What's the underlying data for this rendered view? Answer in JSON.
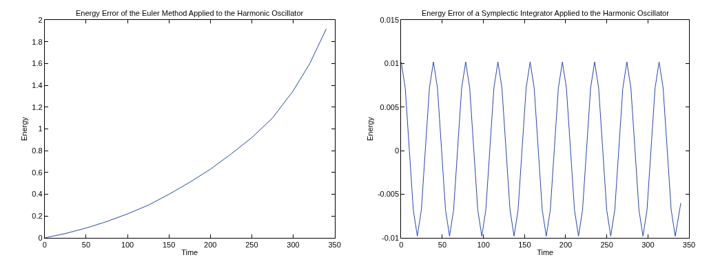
{
  "chart_data": [
    {
      "type": "line",
      "title": "Energy Error of the Euler Method Applied to the Harmonic Oscillator",
      "xlabel": "Time",
      "ylabel": "Energy",
      "x": [
        0,
        25,
        50,
        75,
        100,
        125,
        150,
        175,
        200,
        225,
        250,
        275,
        300,
        320,
        340
      ],
      "series": [
        {
          "color": "#2846a8",
          "values": [
            0,
            0.04,
            0.09,
            0.15,
            0.22,
            0.3,
            0.4,
            0.51,
            0.63,
            0.77,
            0.92,
            1.1,
            1.35,
            1.6,
            1.92
          ]
        }
      ],
      "xlim": [
        0,
        350
      ],
      "ylim": [
        0,
        2
      ],
      "xticks": [
        0,
        50,
        100,
        150,
        200,
        250,
        300,
        350
      ],
      "yticks": [
        0,
        0.2,
        0.4,
        0.6,
        0.8,
        1,
        1.2,
        1.4,
        1.6,
        1.8,
        2
      ]
    },
    {
      "type": "line",
      "title": "Energy Error of a Symplectic Integrator Applied to the Harmonic Oscillator",
      "xlabel": "Time",
      "ylabel": "Energy",
      "x": [
        0,
        4.9,
        9.8,
        14.7,
        19.6,
        24.5,
        29.4,
        34.3,
        39.2,
        44.1,
        49,
        53.9,
        58.8,
        63.7,
        68.6,
        73.5,
        78.4,
        83.3,
        88.2,
        93.1,
        98,
        102.9,
        107.8,
        112.7,
        117.6,
        122.5,
        127.4,
        132.3,
        137.2,
        142.1,
        147,
        151.9,
        156.8,
        161.7,
        166.6,
        171.5,
        176.4,
        181.3,
        186.2,
        191.1,
        196,
        200.9,
        205.8,
        210.7,
        215.6,
        220.5,
        225.4,
        230.3,
        235.2,
        240.1,
        245,
        249.9,
        254.8,
        259.7,
        264.6,
        269.5,
        274.4,
        279.3,
        284.2,
        289.1,
        294,
        298.9,
        303.8,
        308.7,
        313.6,
        318.5,
        323.4,
        328.3,
        333.2,
        340
      ],
      "series": [
        {
          "color": "#2846a8",
          "values": [
            0.0102,
            0.0072,
            0.0002,
            -0.0068,
            -0.0098,
            -0.0068,
            0.0002,
            0.0072,
            0.0102,
            0.0072,
            0.0002,
            -0.0068,
            -0.0098,
            -0.0068,
            0.0002,
            0.0072,
            0.0102,
            0.0072,
            0.0002,
            -0.0068,
            -0.0098,
            -0.0068,
            0.0002,
            0.0072,
            0.0102,
            0.0072,
            0.0002,
            -0.0068,
            -0.0098,
            -0.0068,
            0.0002,
            0.0072,
            0.0102,
            0.0072,
            0.0002,
            -0.0068,
            -0.0098,
            -0.0068,
            0.0002,
            0.0072,
            0.0102,
            0.0072,
            0.0002,
            -0.0068,
            -0.0098,
            -0.0068,
            0.0002,
            0.0072,
            0.0102,
            0.0072,
            0.0002,
            -0.0068,
            -0.0098,
            -0.0068,
            0.0002,
            0.0072,
            0.0102,
            0.0072,
            0.0002,
            -0.0068,
            -0.0098,
            -0.0068,
            0.0002,
            0.0072,
            0.0102,
            0.0072,
            0.0002,
            -0.0068,
            -0.0098,
            -0.006
          ]
        }
      ],
      "xlim": [
        0,
        350
      ],
      "ylim": [
        -0.01,
        0.015
      ],
      "xticks": [
        0,
        50,
        100,
        150,
        200,
        250,
        300,
        350
      ],
      "yticks": [
        -0.01,
        -0.005,
        0,
        0.005,
        0.01,
        0.015
      ]
    }
  ]
}
